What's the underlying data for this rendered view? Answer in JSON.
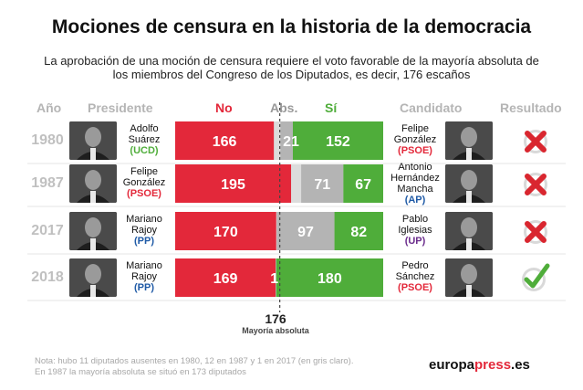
{
  "title": "Mociones de censura en la historia de la democracia",
  "subtitle": "La aprobación de una moción de censura requiere el voto favorable de la mayoría absoluta de los miembros del Congreso de los Diputados, es decir, 176 escaños",
  "headers": {
    "year": "Año",
    "president": "Presidente",
    "no": "No",
    "abs": "Abs.",
    "si": "Sí",
    "candidate": "Candidato",
    "result": "Resultado"
  },
  "colors": {
    "no": "#e3283a",
    "si": "#4fad3a",
    "abs": "#b4b4b4",
    "absent": "#dcdcdc",
    "fail": "#d9262f",
    "pass": "#4fad3a"
  },
  "rows": [
    {
      "year": "1980",
      "president": [
        "Adolfo",
        "Suárez"
      ],
      "president_party": "(UCD)",
      "president_party_color": "#4fad3a",
      "candidate": [
        "Felipe",
        "González"
      ],
      "candidate_party": "(PSOE)",
      "candidate_party_color": "#e3283a",
      "result": "fail-icon"
    },
    {
      "year": "1987",
      "president": [
        "Felipe",
        "González"
      ],
      "president_party": "(PSOE)",
      "president_party_color": "#e3283a",
      "candidate": [
        "Antonio",
        "Hernández",
        "Mancha"
      ],
      "candidate_party": "(AP)",
      "candidate_party_color": "#1f5aa6",
      "result": "fail-icon"
    },
    {
      "year": "2017",
      "president": [
        "Mariano",
        "Rajoy"
      ],
      "president_party": "(PP)",
      "president_party_color": "#1f5aa6",
      "candidate": [
        "Pablo",
        "Iglesias"
      ],
      "candidate_party": "(UP)",
      "candidate_party_color": "#6b2d8c",
      "result": "fail-icon"
    },
    {
      "year": "2018",
      "president": [
        "Mariano",
        "Rajoy"
      ],
      "president_party": "(PP)",
      "president_party_color": "#1f5aa6",
      "candidate": [
        "Pedro",
        "Sánchez"
      ],
      "candidate_party": "(PSOE)",
      "candidate_party_color": "#e3283a",
      "result": "pass-icon"
    }
  ],
  "chart_data": {
    "type": "bar",
    "orientation": "horizontal-stacked",
    "categories": [
      "1980",
      "1987",
      "2017",
      "2018"
    ],
    "total_seats": 350,
    "majority": {
      "value": 176,
      "label": "Mayoría absoluta"
    },
    "series": [
      {
        "name": "No",
        "values": [
          166,
          195,
          170,
          169
        ]
      },
      {
        "name": "Abs.",
        "values": [
          21,
          71,
          97,
          1
        ]
      },
      {
        "name": "Sí",
        "values": [
          152,
          67,
          82,
          180
        ]
      }
    ],
    "absent": [
      11,
      12,
      1,
      0
    ]
  },
  "note": [
    "Nota: hubo 11 diputados ausentes en 1980, 12 en 1987 y 1 en 2017 (en gris claro).",
    "En 1987 la mayoría absoluta se situó en 173 diputados"
  ],
  "brand": {
    "main": "europa",
    "accent": "press",
    "suffix": ".es"
  }
}
